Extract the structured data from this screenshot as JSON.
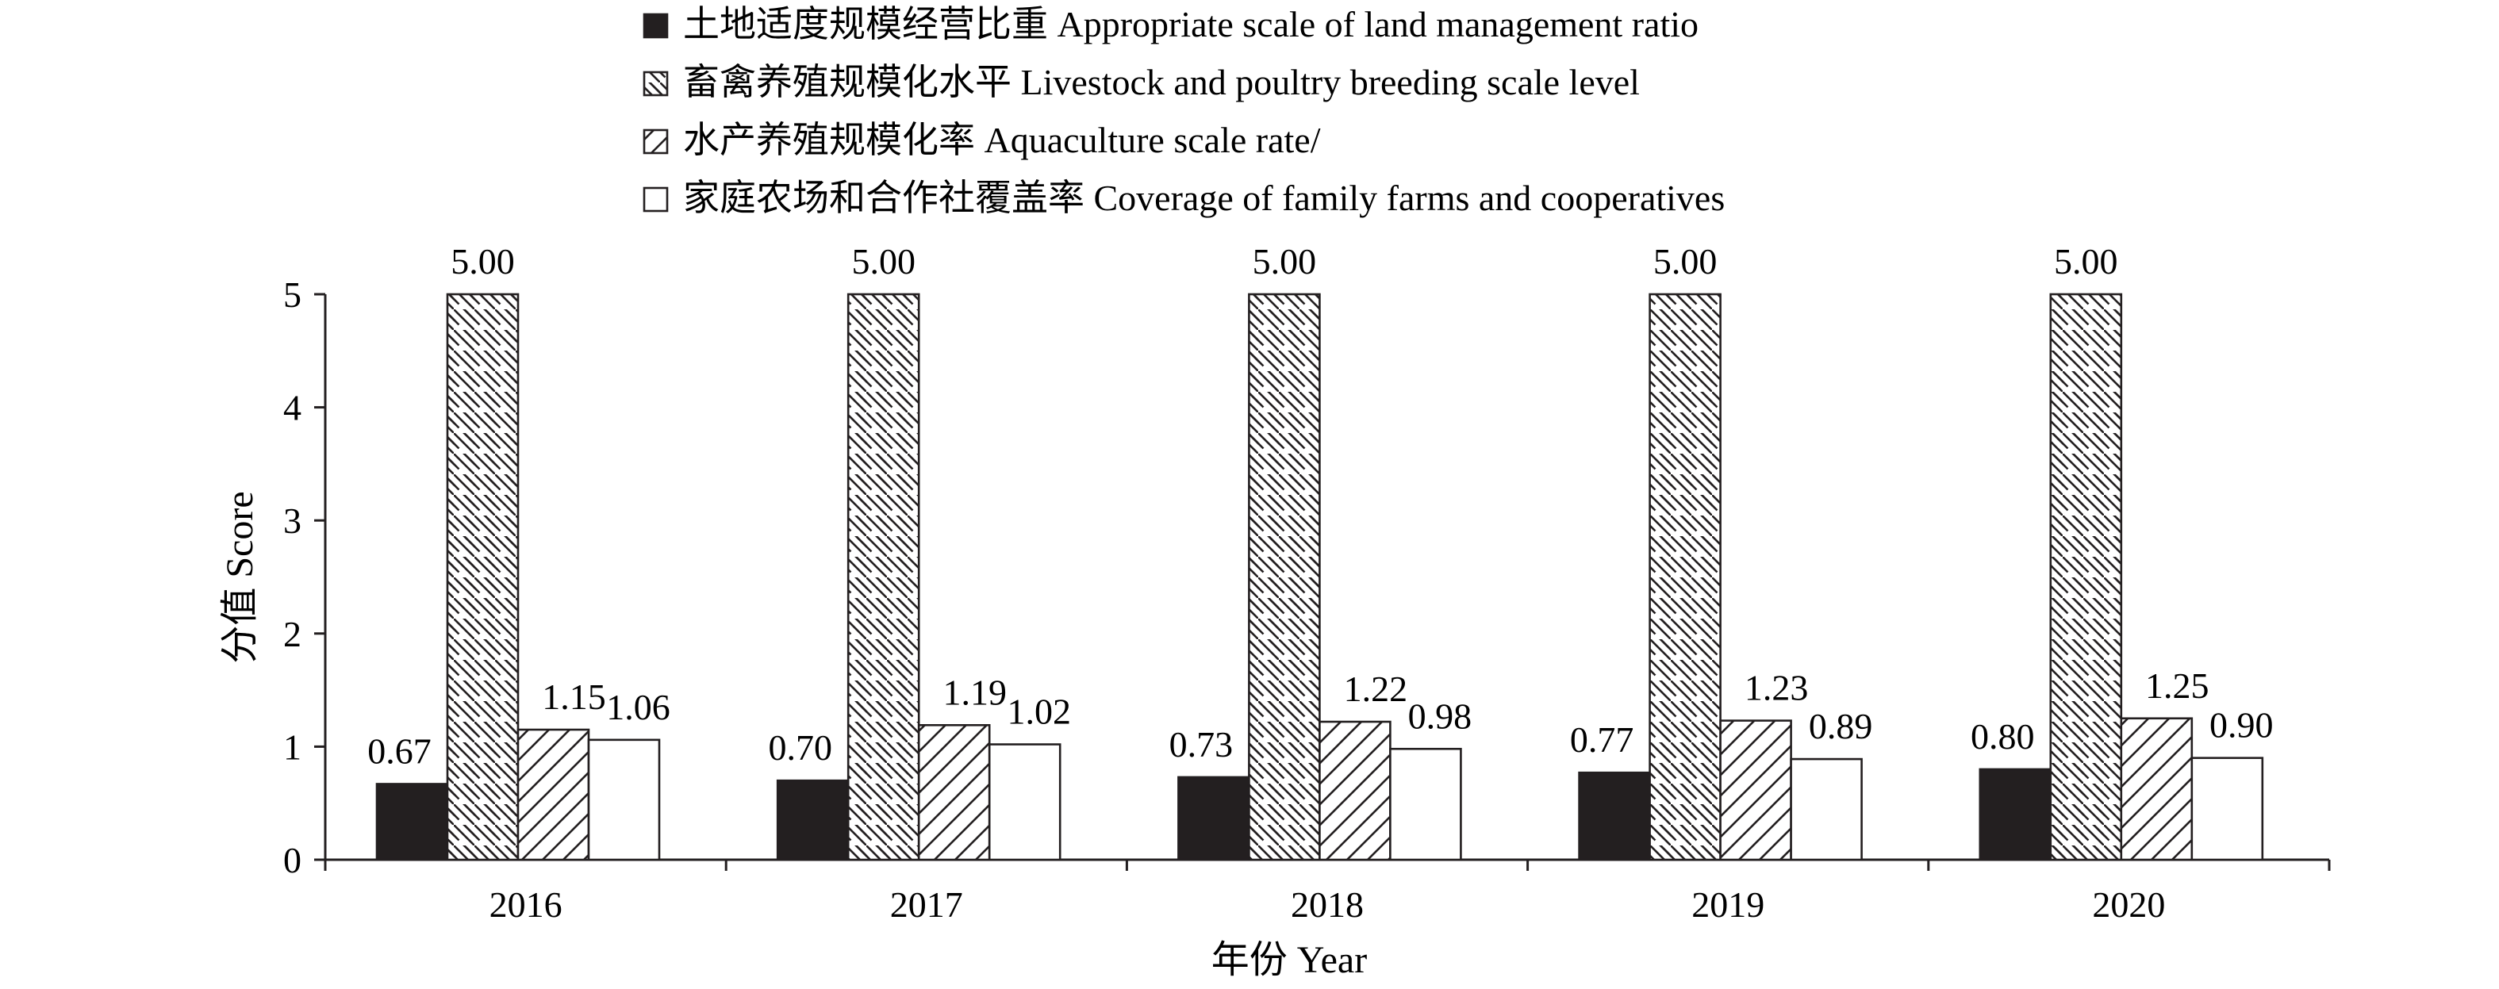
{
  "chart_data": {
    "type": "bar",
    "categories": [
      "2016",
      "2017",
      "2018",
      "2019",
      "2020"
    ],
    "series": [
      {
        "name": "土地适度规模经营比重 Appropriate scale of land management ratio",
        "pattern": "solid",
        "color": "#231f20",
        "values": [
          0.67,
          0.7,
          0.73,
          0.77,
          0.8
        ],
        "labels": [
          "0.67",
          "0.70",
          "0.73",
          "0.77",
          "0.80"
        ]
      },
      {
        "name": "畜禽养殖规模化水平 Livestock and poultry breeding scale level",
        "pattern": "hatch-back",
        "color": "#231f20",
        "values": [
          5.0,
          5.0,
          5.0,
          5.0,
          5.0
        ],
        "labels": [
          "5.00",
          "5.00",
          "5.00",
          "5.00",
          "5.00"
        ]
      },
      {
        "name": "水产养殖规模化率 Aquaculture scale rate/",
        "pattern": "hatch-forward",
        "color": "#231f20",
        "values": [
          1.15,
          1.19,
          1.22,
          1.23,
          1.25
        ],
        "labels": [
          "1.15",
          "1.19",
          "1.22",
          "1.23",
          "1.25"
        ]
      },
      {
        "name": "家庭农场和合作社覆盖率 Coverage of family farms and cooperatives",
        "pattern": "hollow",
        "color": "#231f20",
        "values": [
          1.06,
          1.02,
          0.98,
          0.89,
          0.9
        ],
        "labels": [
          "1.06",
          "1.02",
          "0.98",
          "0.89",
          "0.90"
        ]
      }
    ],
    "xlabel": "年份 Year",
    "ylabel": "分值 Score",
    "ylim": [
      0,
      5
    ],
    "yticks": [
      "0",
      "1",
      "2",
      "3",
      "4",
      "5"
    ],
    "legend_position": "top-center",
    "grid": false
  }
}
